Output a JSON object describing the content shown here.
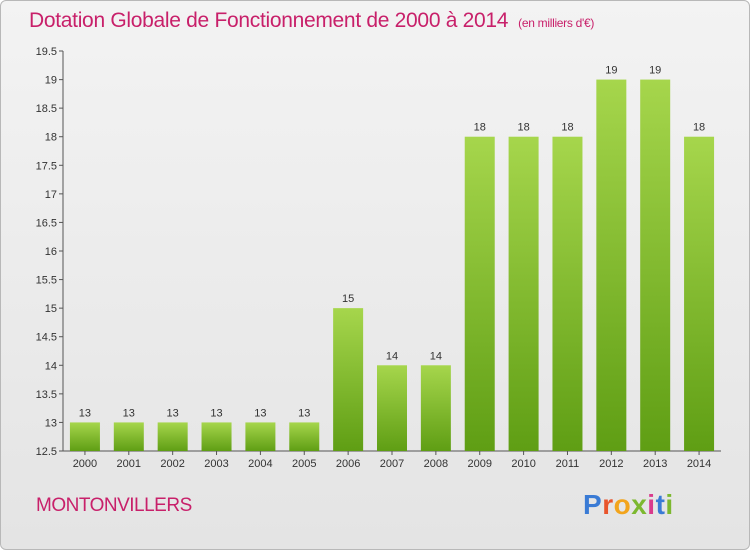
{
  "header": {
    "title": "Dotation Globale de Fonctionnement de 2000 à 2014",
    "unit": "(en milliers d'€)"
  },
  "footer": {
    "commune": "MONTONVILLERS",
    "logo": "Proxiti"
  },
  "colors": {
    "accent": "#c8206a",
    "bar_top": "#a6d64c",
    "bar_bottom": "#5f9e14",
    "logo": [
      "#3a7bd5",
      "#e8542c",
      "#f2a41c",
      "#7cb82f",
      "#d93a8c",
      "#3a7bd5",
      "#7cb82f"
    ]
  },
  "chart_data": {
    "type": "bar",
    "title": "Dotation Globale de Fonctionnement de 2000 à 2014",
    "subtitle": "(en milliers d'€)",
    "xlabel": "",
    "ylabel": "",
    "categories": [
      "2000",
      "2001",
      "2002",
      "2003",
      "2004",
      "2005",
      "2006",
      "2007",
      "2008",
      "2009",
      "2010",
      "2011",
      "2012",
      "2013",
      "2014"
    ],
    "values": [
      13,
      13,
      13,
      13,
      13,
      13,
      15,
      14,
      14,
      18,
      18,
      18,
      19,
      19,
      18
    ],
    "data_labels": [
      "13",
      "13",
      "13",
      "13",
      "13",
      "13",
      "15",
      "14",
      "14",
      "18",
      "18",
      "18",
      "19",
      "19",
      "18"
    ],
    "ylim": [
      12.5,
      19.5
    ],
    "yticks": [
      12.5,
      13,
      13.5,
      14,
      14.5,
      15,
      15.5,
      16,
      16.5,
      17,
      17.5,
      18,
      18.5,
      19,
      19.5
    ],
    "ytick_labels": [
      "12.5",
      "13",
      "13.5",
      "14",
      "14.5",
      "15",
      "15.5",
      "16",
      "16.5",
      "17",
      "17.5",
      "18",
      "18.5",
      "19",
      "19.5"
    ],
    "grid": false,
    "legend": "none"
  }
}
